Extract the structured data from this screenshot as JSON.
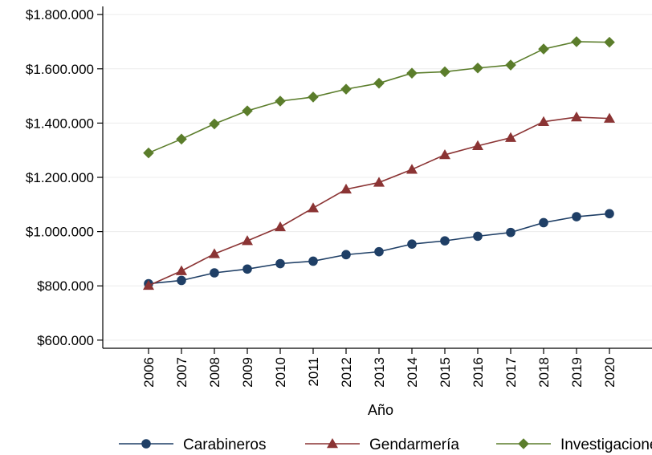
{
  "chart_data": {
    "type": "line",
    "title": "",
    "xlabel": "Año",
    "ylabel": "",
    "x": [
      "2006",
      "2007",
      "2008",
      "2009",
      "2010",
      "2011",
      "2012",
      "2013",
      "2014",
      "2015",
      "2016",
      "2017",
      "2018",
      "2019",
      "2020"
    ],
    "y_ticks": [
      600000,
      800000,
      1000000,
      1200000,
      1400000,
      1600000,
      1800000
    ],
    "y_tick_labels": [
      "$600.000",
      "$800.000",
      "$1.000.000",
      "$1.200.000",
      "$1.400.000",
      "$1.600.000",
      "$1.800.000"
    ],
    "ylim": [
      570000,
      1830000
    ],
    "grid": true,
    "legend_position": "bottom",
    "series": [
      {
        "name": "Carabineros",
        "marker": "circle",
        "color": "#1f3f66",
        "values": [
          808000,
          820000,
          848000,
          862000,
          882000,
          891000,
          915000,
          926000,
          954000,
          966000,
          983000,
          997000,
          1033000,
          1055000,
          1066000
        ]
      },
      {
        "name": "Gendarmería",
        "marker": "triangle",
        "color": "#8b3434",
        "values": [
          801000,
          855000,
          918000,
          966000,
          1017000,
          1087000,
          1156000,
          1181000,
          1229000,
          1283000,
          1316000,
          1346000,
          1405000,
          1422000,
          1417000
        ]
      },
      {
        "name": "Investigaciones",
        "marker": "diamond",
        "color": "#5b7d2b",
        "values": [
          1290000,
          1341000,
          1397000,
          1445000,
          1481000,
          1496000,
          1525000,
          1547000,
          1584000,
          1589000,
          1603000,
          1614000,
          1673000,
          1700000,
          1698000
        ]
      }
    ]
  }
}
